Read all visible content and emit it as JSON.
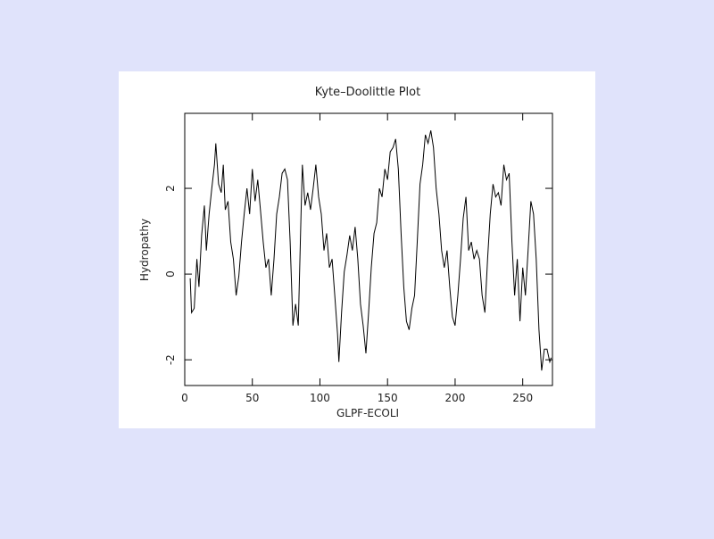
{
  "chart_data": {
    "type": "line",
    "title": "Kyte–Doolittle Plot",
    "x_label": "GLPF-ECOLI",
    "y_label": "Hydropathy",
    "xlim": [
      0,
      272
    ],
    "ylim": [
      -2.6,
      3.75
    ],
    "xticks": [
      0,
      50,
      100,
      150,
      200,
      250
    ],
    "yticks": [
      -2,
      0,
      2
    ],
    "grid": false,
    "series": [
      {
        "color": "#000000",
        "x": [
          4,
          5,
          7,
          9,
          10.5,
          12.5,
          14.5,
          16,
          18,
          20,
          22,
          23,
          25,
          27,
          28.5,
          30,
          32,
          34,
          36,
          38,
          40,
          42,
          44,
          46,
          48,
          50,
          52,
          54,
          56,
          58,
          60,
          62,
          64,
          66,
          68,
          70,
          72,
          74,
          76,
          78,
          80,
          82,
          84,
          86,
          87,
          89,
          91,
          93,
          95,
          97,
          99,
          101,
          103,
          105,
          107,
          109,
          111,
          113,
          114,
          116,
          118,
          120,
          122,
          124,
          126,
          128,
          130,
          132,
          134,
          136,
          138,
          140,
          142,
          144,
          146,
          148,
          150,
          152,
          154,
          156,
          158,
          160,
          162,
          164,
          166,
          168,
          170,
          172,
          174,
          176,
          178,
          180,
          182,
          184,
          186,
          188,
          190,
          192,
          194,
          196,
          198,
          200,
          202,
          204,
          206,
          208,
          210,
          212,
          214,
          216,
          218,
          220,
          222,
          224,
          226,
          228,
          230,
          232,
          234,
          236,
          238,
          240,
          242,
          244,
          246,
          248,
          250,
          252,
          254,
          256,
          258,
          260,
          262,
          264,
          266,
          268,
          270,
          271
        ],
        "values": [
          -0.1,
          -0.9,
          -0.8,
          0.35,
          -0.3,
          0.9,
          1.6,
          0.55,
          1.4,
          2.0,
          2.55,
          3.05,
          2.1,
          1.9,
          2.55,
          1.5,
          1.7,
          0.75,
          0.35,
          -0.5,
          -0.05,
          0.75,
          1.4,
          2.0,
          1.4,
          2.45,
          1.7,
          2.2,
          1.5,
          0.75,
          0.15,
          0.35,
          -0.5,
          0.35,
          1.4,
          1.8,
          2.35,
          2.45,
          2.2,
          0.75,
          -1.2,
          -0.7,
          -1.2,
          1.4,
          2.55,
          1.6,
          1.9,
          1.5,
          2.0,
          2.55,
          1.8,
          1.4,
          0.55,
          0.95,
          0.15,
          0.35,
          -0.5,
          -1.4,
          -2.05,
          -0.9,
          0.05,
          0.45,
          0.9,
          0.55,
          1.1,
          0.35,
          -0.7,
          -1.2,
          -1.85,
          -0.9,
          0.15,
          0.95,
          1.2,
          2.0,
          1.8,
          2.45,
          2.2,
          2.85,
          2.95,
          3.15,
          2.45,
          0.95,
          -0.3,
          -1.1,
          -1.3,
          -0.8,
          -0.5,
          0.75,
          2.1,
          2.55,
          3.25,
          3.05,
          3.35,
          2.95,
          2.0,
          1.4,
          0.55,
          0.15,
          0.55,
          -0.3,
          -1.0,
          -1.2,
          -0.5,
          0.35,
          1.3,
          1.8,
          0.55,
          0.75,
          0.35,
          0.55,
          0.35,
          -0.5,
          -0.9,
          0.35,
          1.4,
          2.1,
          1.8,
          1.9,
          1.6,
          2.55,
          2.2,
          2.35,
          0.75,
          -0.5,
          0.35,
          -1.1,
          0.15,
          -0.5,
          0.55,
          1.7,
          1.4,
          0.35,
          -1.3,
          -2.25,
          -1.75,
          -1.75,
          -2.05,
          -1.95
        ]
      }
    ]
  }
}
